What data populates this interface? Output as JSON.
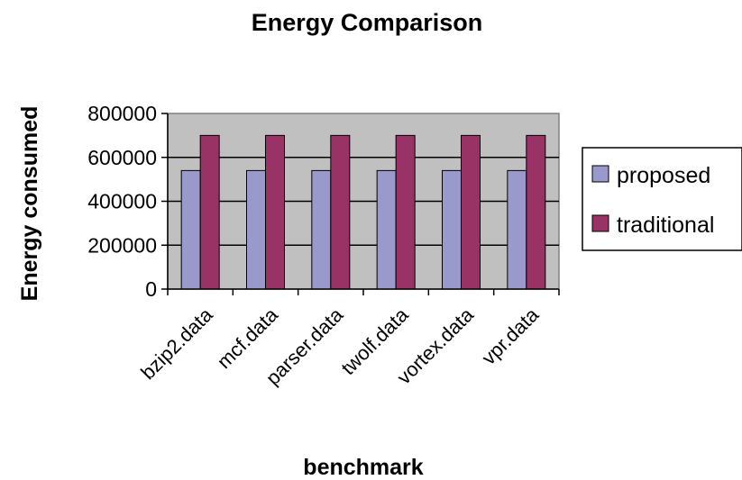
{
  "chart_data": {
    "type": "bar",
    "title": "Energy Comparison",
    "xlabel": "benchmark",
    "ylabel": "Energy consumed",
    "categories": [
      "bzip2.data",
      "mcf.data",
      "parser.data",
      "twolf.data",
      "vortex.data",
      "vpr.data"
    ],
    "series": [
      {
        "name": "proposed",
        "values": [
          540000,
          540000,
          540000,
          540000,
          540000,
          540000
        ],
        "color": "#9999cc"
      },
      {
        "name": "traditional",
        "values": [
          700000,
          700000,
          700000,
          700000,
          700000,
          700000
        ],
        "color": "#993366"
      }
    ],
    "ylim": [
      0,
      800000
    ],
    "yticks": [
      0,
      200000,
      400000,
      600000,
      800000
    ],
    "ytick_labels": [
      "0",
      "200000",
      "400000",
      "600000",
      "800000"
    ],
    "grid": true,
    "plot_background": "#c0c0c0",
    "legend_position": "right"
  }
}
